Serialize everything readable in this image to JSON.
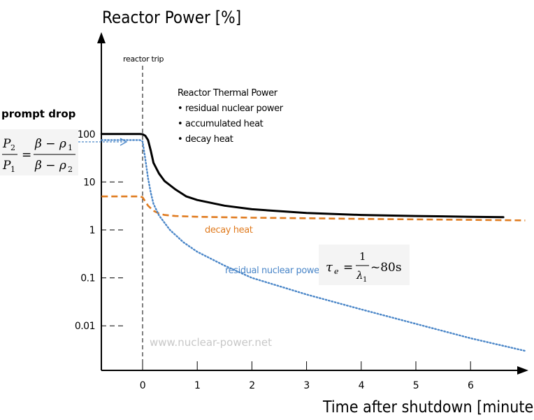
{
  "chart_data": {
    "type": "line",
    "title": "Reactor Power [%]",
    "xlabel": "Time after shutdown [minutes]",
    "ylabel": "Reactor Power [%]",
    "xlim": [
      -0.75,
      7.0
    ],
    "ylim_log": [
      0.003,
      800
    ],
    "y_scale": "log",
    "x_ticks": [
      "0",
      "1",
      "2",
      "3",
      "4",
      "5",
      "6"
    ],
    "y_ticks": [
      {
        "label": "100",
        "value": 100
      },
      {
        "label": "10",
        "value": 10
      },
      {
        "label": "1",
        "value": 1
      },
      {
        "label": "0.1",
        "value": 0.1
      },
      {
        "label": "0.01",
        "value": 0.01
      }
    ],
    "series": [
      {
        "name": "Reactor Thermal Power",
        "color": "#000000",
        "style": "solid",
        "x": [
          -0.75,
          -0.3,
          -0.05,
          0.0,
          0.05,
          0.1,
          0.15,
          0.2,
          0.3,
          0.4,
          0.6,
          0.8,
          1.0,
          1.5,
          2.0,
          3.0,
          4.0,
          5.0,
          6.0,
          6.6
        ],
        "y": [
          100,
          100,
          100,
          99,
          92,
          75,
          45,
          25,
          15,
          10.5,
          7,
          5,
          4.2,
          3.2,
          2.7,
          2.25,
          2.05,
          1.95,
          1.88,
          1.85
        ]
      },
      {
        "name": "decay heat",
        "color": "#e07b1f",
        "style": "dashed",
        "x": [
          -0.75,
          -0.05,
          0.0,
          0.1,
          0.2,
          0.3,
          0.4,
          0.6,
          1.0,
          2.0,
          3.0,
          4.0,
          5.0,
          6.0,
          7.0
        ],
        "y": [
          5.0,
          5.0,
          4.8,
          3.2,
          2.5,
          2.2,
          2.05,
          1.95,
          1.88,
          1.8,
          1.75,
          1.7,
          1.66,
          1.62,
          1.58
        ]
      },
      {
        "name": "residual nuclear power",
        "color": "#4a86c8",
        "style": "dotted",
        "x": [
          -0.75,
          -0.05,
          0.0,
          0.05,
          0.1,
          0.15,
          0.2,
          0.3,
          0.5,
          0.75,
          1.0,
          1.5,
          2.0,
          3.0,
          4.0,
          5.0,
          6.0,
          7.0
        ],
        "y": [
          75,
          75,
          70,
          30,
          12,
          6,
          3.5,
          2.0,
          1.0,
          0.55,
          0.35,
          0.18,
          0.1,
          0.045,
          0.022,
          0.011,
          0.0055,
          0.003
        ]
      }
    ],
    "annotations": {
      "reactor_trip": "reactor trip",
      "thermal_title": "Reactor Thermal Power",
      "bullets": [
        "• residual nuclear power",
        "• accumulated heat",
        "• decay heat"
      ],
      "decay_heat_label": "decay heat",
      "residual_label": "residual nuclear power",
      "prompt_drop": "prompt drop",
      "watermark": "www.nuclear-power.net",
      "tau_rhs": "~80s"
    }
  }
}
